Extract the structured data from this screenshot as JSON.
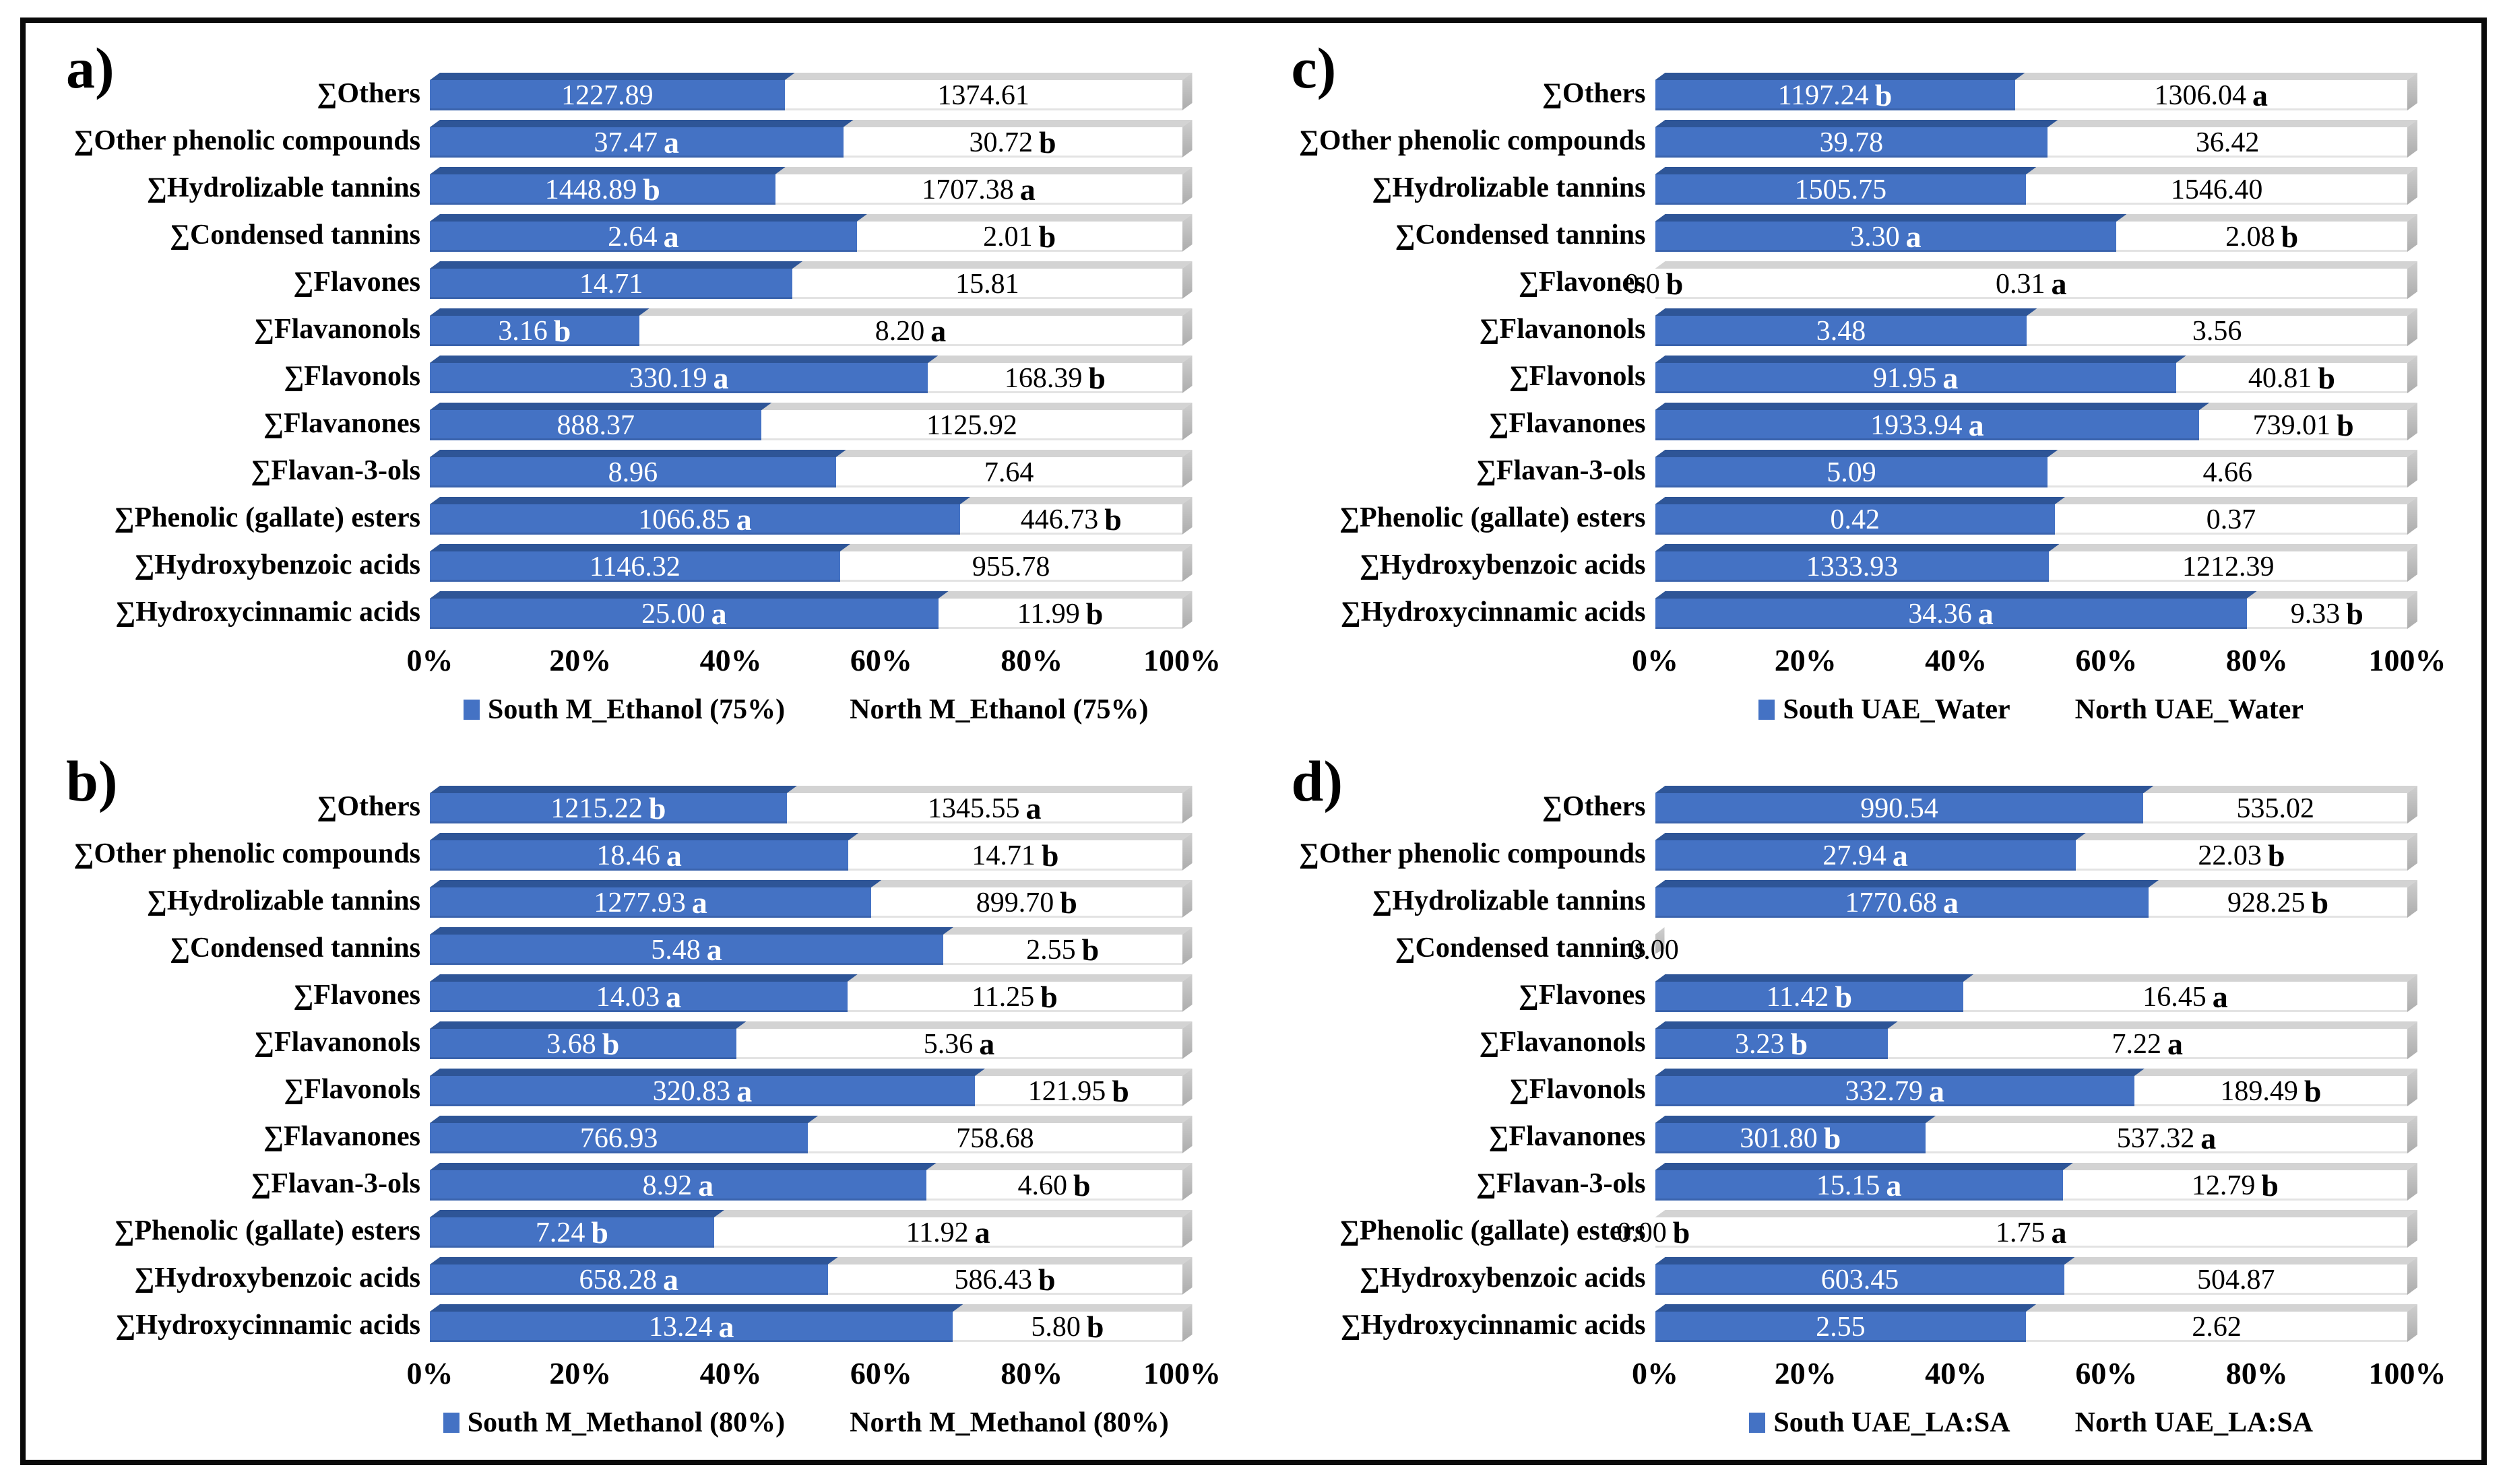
{
  "colors": {
    "south_bar": "#4472C4",
    "south_bevel": "#2E5597",
    "track_gray": "#D3D3D3",
    "cap_gray": "#B7B7B7",
    "frame": "#0A0A0A"
  },
  "chart_data": [
    {
      "id": "a",
      "panel_label": "a)",
      "type": "bar",
      "stacked_100": true,
      "legend": {
        "south": "South M_Ethanol (75%)",
        "north": "North M_Ethanol (75%)"
      },
      "x_axis": {
        "ticks": [
          "0%",
          "20%",
          "40%",
          "60%",
          "80%",
          "100%"
        ],
        "range": [
          0,
          100
        ],
        "grid": false
      },
      "categories": [
        "∑Others",
        "∑Other phenolic compounds",
        "∑Hydrolizable tannins",
        "∑Condensed tannins",
        "∑Flavones",
        "∑Flavanonols",
        "∑Flavonols",
        "∑Flavanones",
        "∑Flavan-3-ols",
        "∑Phenolic (gallate) esters",
        "∑Hydroxybenzoic acids",
        "∑Hydroxycinnamic acids"
      ],
      "rows": [
        {
          "category": "∑Others",
          "south": {
            "value": 1227.89,
            "label": "1227.89",
            "letter": ""
          },
          "north": {
            "value": 1374.61,
            "label": "1374.61",
            "letter": ""
          }
        },
        {
          "category": "∑Other phenolic compounds",
          "south": {
            "value": 37.47,
            "label": "37.47",
            "letter": "a"
          },
          "north": {
            "value": 30.72,
            "label": "30.72",
            "letter": "b"
          }
        },
        {
          "category": "∑Hydrolizable tannins",
          "south": {
            "value": 1448.89,
            "label": "1448.89",
            "letter": "b"
          },
          "north": {
            "value": 1707.38,
            "label": "1707.38",
            "letter": "a"
          }
        },
        {
          "category": "∑Condensed tannins",
          "south": {
            "value": 2.64,
            "label": "2.64",
            "letter": "a"
          },
          "north": {
            "value": 2.01,
            "label": "2.01",
            "letter": "b"
          }
        },
        {
          "category": "∑Flavones",
          "south": {
            "value": 14.71,
            "label": "14.71",
            "letter": ""
          },
          "north": {
            "value": 15.81,
            "label": "15.81",
            "letter": ""
          }
        },
        {
          "category": "∑Flavanonols",
          "south": {
            "value": 3.16,
            "label": "3.16",
            "letter": "b"
          },
          "north": {
            "value": 8.2,
            "label": "8.20",
            "letter": "a"
          }
        },
        {
          "category": "∑Flavonols",
          "south": {
            "value": 330.19,
            "label": "330.19",
            "letter": "a"
          },
          "north": {
            "value": 168.39,
            "label": "168.39",
            "letter": "b"
          }
        },
        {
          "category": "∑Flavanones",
          "south": {
            "value": 888.37,
            "label": "888.37",
            "letter": ""
          },
          "north": {
            "value": 1125.92,
            "label": "1125.92",
            "letter": ""
          }
        },
        {
          "category": "∑Flavan-3-ols",
          "south": {
            "value": 8.96,
            "label": "8.96",
            "letter": ""
          },
          "north": {
            "value": 7.64,
            "label": "7.64",
            "letter": ""
          }
        },
        {
          "category": "∑Phenolic (gallate) esters",
          "south": {
            "value": 1066.85,
            "label": "1066.85",
            "letter": "a"
          },
          "north": {
            "value": 446.73,
            "label": "446.73",
            "letter": "b"
          }
        },
        {
          "category": "∑Hydroxybenzoic acids",
          "south": {
            "value": 1146.32,
            "label": "1146.32",
            "letter": ""
          },
          "north": {
            "value": 955.78,
            "label": "955.78",
            "letter": ""
          }
        },
        {
          "category": "∑Hydroxycinnamic acids",
          "south": {
            "value": 25.0,
            "label": "25.00",
            "letter": "a"
          },
          "north": {
            "value": 11.99,
            "label": "11.99",
            "letter": "b"
          }
        }
      ]
    },
    {
      "id": "c",
      "panel_label": "c)",
      "type": "bar",
      "stacked_100": true,
      "legend": {
        "south": "South UAE_Water",
        "north": "North UAE_Water"
      },
      "x_axis": {
        "ticks": [
          "0%",
          "20%",
          "40%",
          "60%",
          "80%",
          "100%"
        ],
        "range": [
          0,
          100
        ],
        "grid": false
      },
      "categories": [
        "∑Others",
        "∑Other phenolic compounds",
        "∑Hydrolizable tannins",
        "∑Condensed tannins",
        "∑Flavones",
        "∑Flavanonols",
        "∑Flavonols",
        "∑Flavanones",
        "∑Flavan-3-ols",
        "∑Phenolic (gallate) esters",
        "∑Hydroxybenzoic acids",
        "∑Hydroxycinnamic acids"
      ],
      "rows": [
        {
          "category": "∑Others",
          "south": {
            "value": 1197.24,
            "label": "1197.24",
            "letter": "b"
          },
          "north": {
            "value": 1306.04,
            "label": "1306.04",
            "letter": "a"
          }
        },
        {
          "category": "∑Other phenolic compounds",
          "south": {
            "value": 39.78,
            "label": "39.78",
            "letter": ""
          },
          "north": {
            "value": 36.42,
            "label": "36.42",
            "letter": ""
          }
        },
        {
          "category": "∑Hydrolizable tannins",
          "south": {
            "value": 1505.75,
            "label": "1505.75",
            "letter": ""
          },
          "north": {
            "value": 1546.4,
            "label": "1546.40",
            "letter": ""
          }
        },
        {
          "category": "∑Condensed tannins",
          "south": {
            "value": 3.3,
            "label": "3.30",
            "letter": "a"
          },
          "north": {
            "value": 2.08,
            "label": "2.08",
            "letter": "b"
          }
        },
        {
          "category": "∑Flavones",
          "south": {
            "value": 0,
            "label": "0.0",
            "letter": "b"
          },
          "north": {
            "value": 0.31,
            "label": "0.31",
            "letter": "a"
          }
        },
        {
          "category": "∑Flavanonols",
          "south": {
            "value": 3.48,
            "label": "3.48",
            "letter": ""
          },
          "north": {
            "value": 3.56,
            "label": "3.56",
            "letter": ""
          }
        },
        {
          "category": "∑Flavonols",
          "south": {
            "value": 91.95,
            "label": "91.95",
            "letter": "a"
          },
          "north": {
            "value": 40.81,
            "label": "40.81",
            "letter": "b"
          }
        },
        {
          "category": "∑Flavanones",
          "south": {
            "value": 1933.94,
            "label": "1933.94",
            "letter": "a"
          },
          "north": {
            "value": 739.01,
            "label": "739.01",
            "letter": "b"
          }
        },
        {
          "category": "∑Flavan-3-ols",
          "south": {
            "value": 5.09,
            "label": "5.09",
            "letter": ""
          },
          "north": {
            "value": 4.66,
            "label": "4.66",
            "letter": ""
          }
        },
        {
          "category": "∑Phenolic (gallate) esters",
          "south": {
            "value": 0.42,
            "label": "0.42",
            "letter": ""
          },
          "north": {
            "value": 0.37,
            "label": "0.37",
            "letter": ""
          }
        },
        {
          "category": "∑Hydroxybenzoic acids",
          "south": {
            "value": 1333.93,
            "label": "1333.93",
            "letter": ""
          },
          "north": {
            "value": 1212.39,
            "label": "1212.39",
            "letter": ""
          }
        },
        {
          "category": "∑Hydroxycinnamic acids",
          "south": {
            "value": 34.36,
            "label": "34.36",
            "letter": "a"
          },
          "north": {
            "value": 9.33,
            "label": "9.33",
            "letter": "b"
          }
        }
      ]
    },
    {
      "id": "b",
      "panel_label": "b)",
      "type": "bar",
      "stacked_100": true,
      "legend": {
        "south": "South M_Methanol (80%)",
        "north": "North M_Methanol (80%)"
      },
      "x_axis": {
        "ticks": [
          "0%",
          "20%",
          "40%",
          "60%",
          "80%",
          "100%"
        ],
        "range": [
          0,
          100
        ],
        "grid": false
      },
      "categories": [
        "∑Others",
        "∑Other phenolic compounds",
        "∑Hydrolizable tannins",
        "∑Condensed tannins",
        "∑Flavones",
        "∑Flavanonols",
        "∑Flavonols",
        "∑Flavanones",
        "∑Flavan-3-ols",
        "∑Phenolic (gallate) esters",
        "∑Hydroxybenzoic acids",
        "∑Hydroxycinnamic acids"
      ],
      "rows": [
        {
          "category": "∑Others",
          "south": {
            "value": 1215.22,
            "label": "1215.22",
            "letter": "b"
          },
          "north": {
            "value": 1345.55,
            "label": "1345.55",
            "letter": "a"
          }
        },
        {
          "category": "∑Other phenolic compounds",
          "south": {
            "value": 18.46,
            "label": "18.46",
            "letter": "a"
          },
          "north": {
            "value": 14.71,
            "label": "14.71",
            "letter": "b"
          }
        },
        {
          "category": "∑Hydrolizable tannins",
          "south": {
            "value": 1277.93,
            "label": "1277.93",
            "letter": "a"
          },
          "north": {
            "value": 899.7,
            "label": "899.70",
            "letter": "b"
          }
        },
        {
          "category": "∑Condensed tannins",
          "south": {
            "value": 5.48,
            "label": "5.48",
            "letter": "a"
          },
          "north": {
            "value": 2.55,
            "label": "2.55",
            "letter": "b"
          }
        },
        {
          "category": "∑Flavones",
          "south": {
            "value": 14.03,
            "label": "14.03",
            "letter": "a"
          },
          "north": {
            "value": 11.25,
            "label": "11.25",
            "letter": "b"
          }
        },
        {
          "category": "∑Flavanonols",
          "south": {
            "value": 3.68,
            "label": "3.68",
            "letter": "b"
          },
          "north": {
            "value": 5.36,
            "label": "5.36",
            "letter": "a"
          }
        },
        {
          "category": "∑Flavonols",
          "south": {
            "value": 320.83,
            "label": "320.83",
            "letter": "a"
          },
          "north": {
            "value": 121.95,
            "label": "121.95",
            "letter": "b"
          }
        },
        {
          "category": "∑Flavanones",
          "south": {
            "value": 766.93,
            "label": "766.93",
            "letter": ""
          },
          "north": {
            "value": 758.68,
            "label": "758.68",
            "letter": ""
          }
        },
        {
          "category": "∑Flavan-3-ols",
          "south": {
            "value": 8.92,
            "label": "8.92",
            "letter": "a"
          },
          "north": {
            "value": 4.6,
            "label": "4.60",
            "letter": "b"
          }
        },
        {
          "category": "∑Phenolic (gallate) esters",
          "south": {
            "value": 7.24,
            "label": "7.24",
            "letter": "b"
          },
          "north": {
            "value": 11.92,
            "label": "11.92",
            "letter": "a"
          }
        },
        {
          "category": "∑Hydroxybenzoic acids",
          "south": {
            "value": 658.28,
            "label": "658.28",
            "letter": "a"
          },
          "north": {
            "value": 586.43,
            "label": "586.43",
            "letter": "b"
          }
        },
        {
          "category": "∑Hydroxycinnamic acids",
          "south": {
            "value": 13.24,
            "label": "13.24",
            "letter": "a"
          },
          "north": {
            "value": 5.8,
            "label": "5.80",
            "letter": "b"
          }
        }
      ]
    },
    {
      "id": "d",
      "panel_label": "d)",
      "type": "bar",
      "stacked_100": true,
      "legend": {
        "south": "South UAE_LA:SA",
        "north": "North UAE_LA:SA"
      },
      "x_axis": {
        "ticks": [
          "0%",
          "20%",
          "40%",
          "60%",
          "80%",
          "100%"
        ],
        "range": [
          0,
          100
        ],
        "grid": false
      },
      "categories": [
        "∑Others",
        "∑Other phenolic compounds",
        "∑Hydrolizable tannins",
        "∑Condensed tannins",
        "∑Flavones",
        "∑Flavanonols",
        "∑Flavonols",
        "∑Flavanones",
        "∑Flavan-3-ols",
        "∑Phenolic (gallate) esters",
        "∑Hydroxybenzoic acids",
        "∑Hydroxycinnamic acids"
      ],
      "rows": [
        {
          "category": "∑Others",
          "south": {
            "value": 990.54,
            "label": "990.54",
            "letter": ""
          },
          "north": {
            "value": 535.02,
            "label": "535.02",
            "letter": ""
          }
        },
        {
          "category": "∑Other phenolic compounds",
          "south": {
            "value": 27.94,
            "label": "27.94",
            "letter": "a"
          },
          "north": {
            "value": 22.03,
            "label": "22.03",
            "letter": "b"
          }
        },
        {
          "category": "∑Hydrolizable tannins",
          "south": {
            "value": 1770.68,
            "label": "1770.68",
            "letter": "a"
          },
          "north": {
            "value": 928.25,
            "label": "928.25",
            "letter": "b"
          }
        },
        {
          "category": "∑Condensed tannins",
          "south": {
            "value": 0,
            "label": "0.00",
            "letter": ""
          },
          "north": null
        },
        {
          "category": "∑Flavones",
          "south": {
            "value": 11.42,
            "label": "11.42",
            "letter": "b"
          },
          "north": {
            "value": 16.45,
            "label": "16.45",
            "letter": "a"
          }
        },
        {
          "category": "∑Flavanonols",
          "south": {
            "value": 3.23,
            "label": "3.23",
            "letter": "b"
          },
          "north": {
            "value": 7.22,
            "label": "7.22",
            "letter": "a"
          }
        },
        {
          "category": "∑Flavonols",
          "south": {
            "value": 332.79,
            "label": "332.79",
            "letter": "a"
          },
          "north": {
            "value": 189.49,
            "label": "189.49",
            "letter": "b"
          }
        },
        {
          "category": "∑Flavanones",
          "south": {
            "value": 301.8,
            "label": "301.80",
            "letter": "b"
          },
          "north": {
            "value": 537.32,
            "label": "537.32",
            "letter": "a"
          }
        },
        {
          "category": "∑Flavan-3-ols",
          "south": {
            "value": 15.15,
            "label": "15.15",
            "letter": "a"
          },
          "north": {
            "value": 12.79,
            "label": "12.79",
            "letter": "b"
          }
        },
        {
          "category": "∑Phenolic (gallate) esters",
          "south": {
            "value": 0,
            "label": "0.00",
            "letter": "b"
          },
          "north": {
            "value": 1.75,
            "label": "1.75",
            "letter": "a"
          }
        },
        {
          "category": "∑Hydroxybenzoic acids",
          "south": {
            "value": 603.45,
            "label": "603.45",
            "letter": ""
          },
          "north": {
            "value": 504.87,
            "label": "504.87",
            "letter": ""
          }
        },
        {
          "category": "∑Hydroxycinnamic acids",
          "south": {
            "value": 2.55,
            "label": "2.55",
            "letter": ""
          },
          "north": {
            "value": 2.62,
            "label": "2.62",
            "letter": ""
          }
        }
      ]
    }
  ]
}
